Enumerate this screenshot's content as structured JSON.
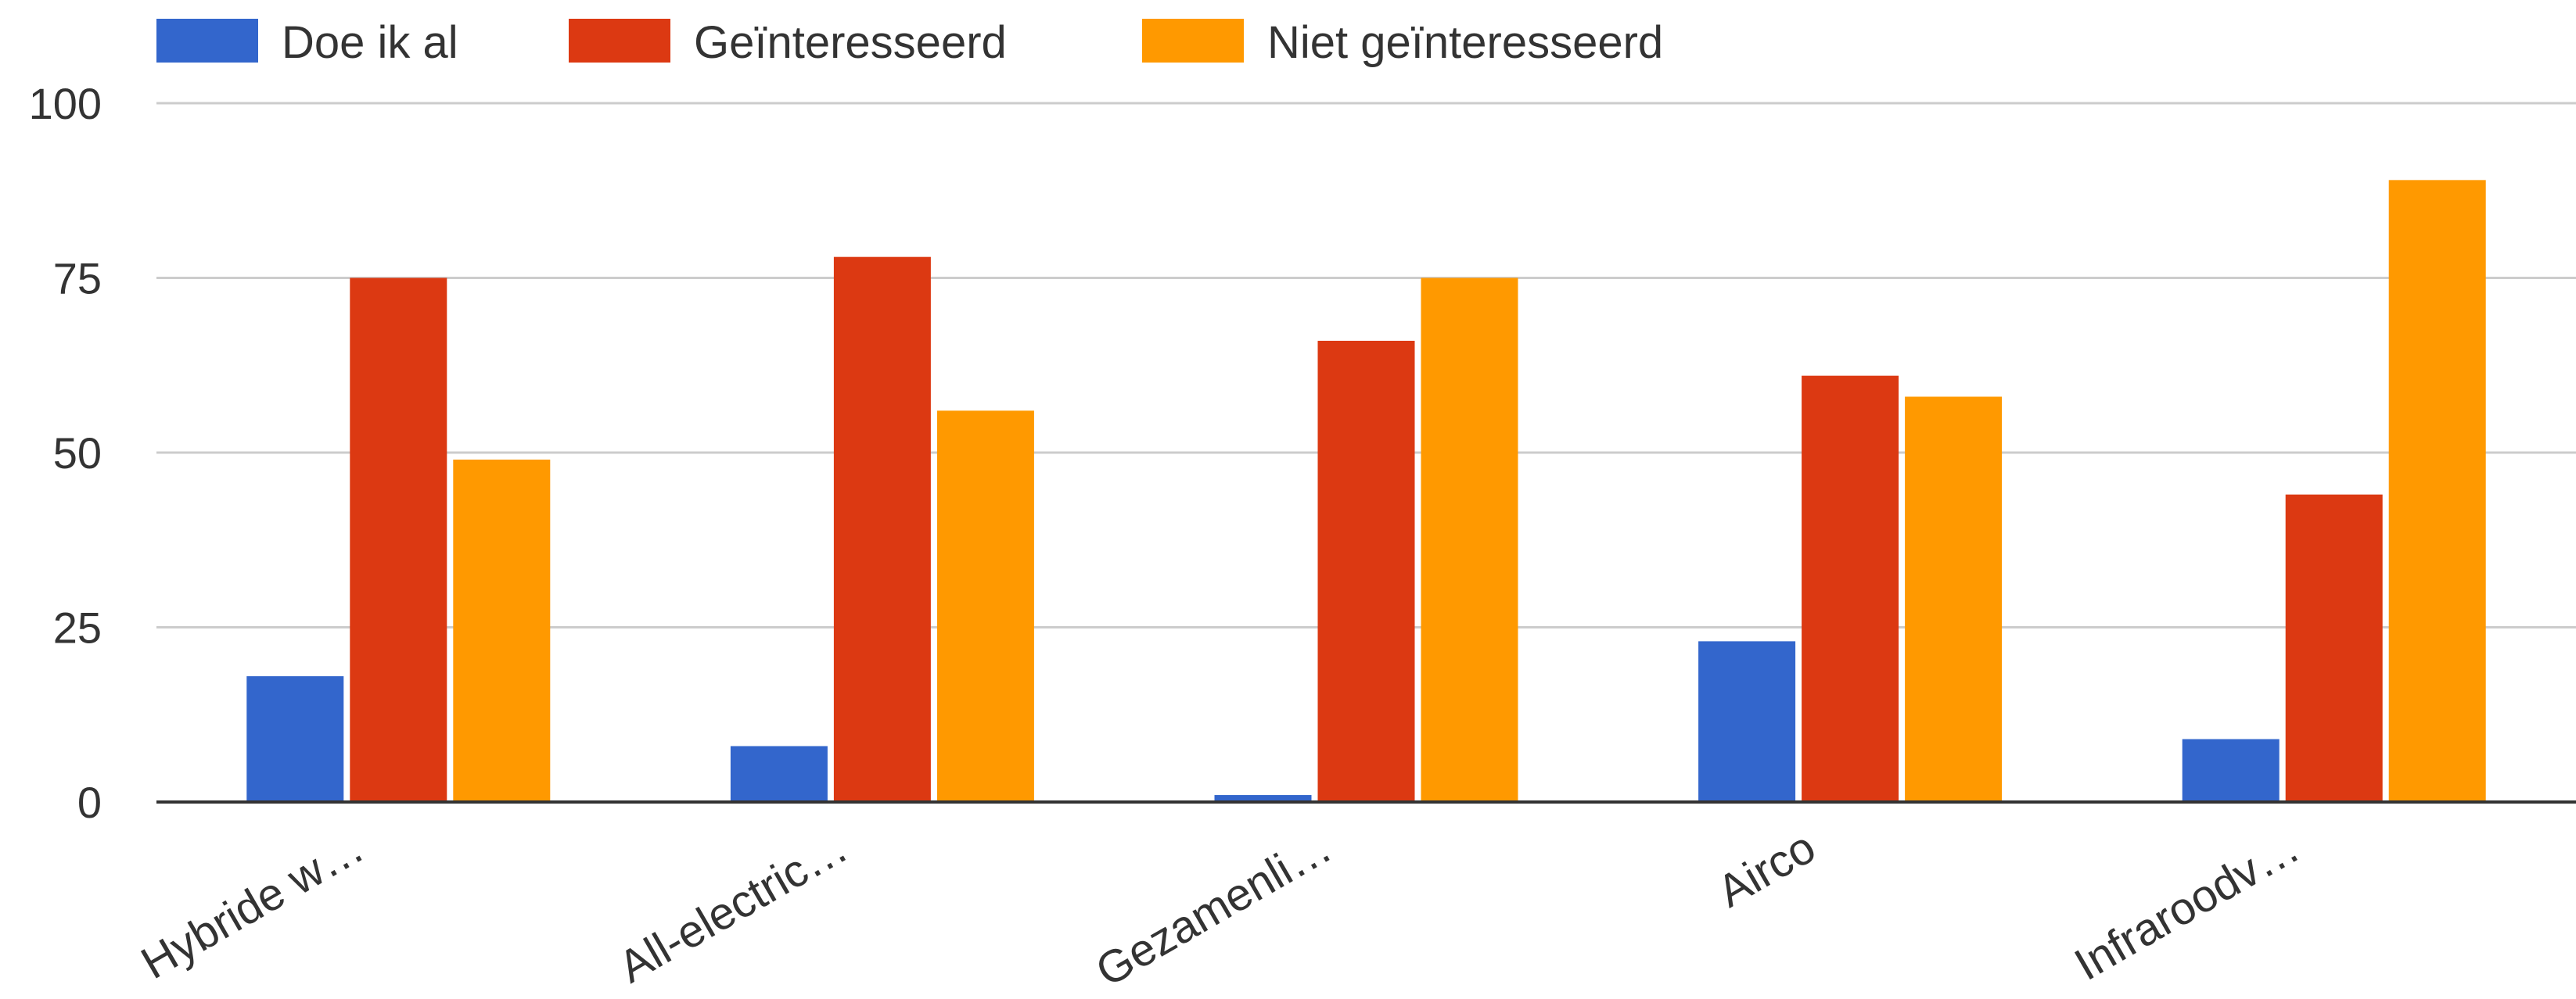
{
  "chart_data": {
    "type": "bar",
    "title": "",
    "xlabel": "",
    "ylabel": "",
    "ylim": [
      0,
      100
    ],
    "yticks": [
      "0",
      "25",
      "50",
      "75",
      "100"
    ],
    "grid": true,
    "legend_position": "top-left",
    "categories": [
      "Hybride w…",
      "All-electric…",
      "Gezamenli…",
      "Airco",
      "Infraroodv…"
    ],
    "series": [
      {
        "name": "Doe ik al",
        "color": "#3366cc",
        "values": [
          18,
          8,
          1,
          23,
          9
        ]
      },
      {
        "name": "Geïnteresseerd",
        "color": "#dc3912",
        "values": [
          75,
          78,
          66,
          61,
          44
        ]
      },
      {
        "name": "Niet geïnteresseerd",
        "color": "#ff9900",
        "values": [
          49,
          56,
          75,
          58,
          89
        ]
      }
    ]
  }
}
